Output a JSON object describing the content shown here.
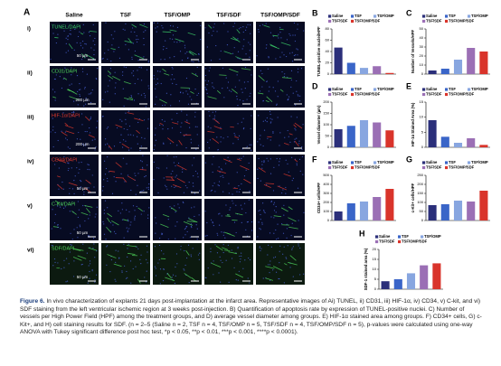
{
  "panel_a": {
    "label": "A",
    "columns": [
      "Saline",
      "TSF",
      "TSF/OMP",
      "TSF/SDF",
      "TSF/OMP/SDF"
    ],
    "rows": [
      {
        "label": "i)",
        "stain": "TUNEL/DAPI",
        "scale": "50 µm"
      },
      {
        "label": "ii)",
        "stain": "CD31/DAPI",
        "scale": "200 µm"
      },
      {
        "label": "iii)",
        "stain": "HIF-1α/DAPI",
        "scale": "200 µm"
      },
      {
        "label": "iv)",
        "stain": "CD34/DAPI",
        "scale": "50 µm"
      },
      {
        "label": "v)",
        "stain": "C-Kit/DAPI",
        "scale": "50 µm"
      },
      {
        "label": "vi)",
        "stain": "SDF/DAPI",
        "scale": "50 µm"
      }
    ]
  },
  "chart_data": [
    {
      "type": "bar",
      "panel_label": "B",
      "y_label": "TUNEL-positive nuclei/HPF",
      "ylim": [
        0,
        80
      ],
      "yticks": [
        0,
        20,
        40,
        60,
        80
      ],
      "series": [
        {
          "name": "Saline",
          "color": "#2b2f7a",
          "values": [
            47
          ]
        },
        {
          "name": "TSF",
          "color": "#3a65c8",
          "values": [
            20
          ]
        },
        {
          "name": "TSF/OMP",
          "color": "#88a6e0",
          "values": [
            11
          ]
        },
        {
          "name": "TSF/SDF",
          "color": "#9b6fb5",
          "values": [
            14
          ]
        },
        {
          "name": "TSF/OMP/SDF",
          "color": "#d9342b",
          "values": [
            2
          ]
        }
      ]
    },
    {
      "type": "bar",
      "panel_label": "C",
      "y_label": "Number of Vessels/HPF",
      "ylim": [
        0,
        50
      ],
      "yticks": [
        0,
        10,
        20,
        30,
        40,
        50
      ],
      "series": [
        {
          "name": "Saline",
          "color": "#2b2f7a",
          "values": [
            4
          ]
        },
        {
          "name": "TSF",
          "color": "#3a65c8",
          "values": [
            6
          ]
        },
        {
          "name": "TSF/OMP",
          "color": "#88a6e0",
          "values": [
            16
          ]
        },
        {
          "name": "TSF/SDF",
          "color": "#9b6fb5",
          "values": [
            29
          ]
        },
        {
          "name": "TSF/OMP/SDF",
          "color": "#d9342b",
          "values": [
            25
          ]
        }
      ]
    },
    {
      "type": "bar",
      "panel_label": "D",
      "y_label": "Vessel diameter (µm)",
      "ylim": [
        0,
        200
      ],
      "yticks": [
        0,
        50,
        100,
        150,
        200
      ],
      "series": [
        {
          "name": "Saline",
          "color": "#2b2f7a",
          "values": [
            80
          ]
        },
        {
          "name": "TSF",
          "color": "#3a65c8",
          "values": [
            95
          ]
        },
        {
          "name": "TSF/OMP",
          "color": "#88a6e0",
          "values": [
            120
          ]
        },
        {
          "name": "TSF/SDF",
          "color": "#9b6fb5",
          "values": [
            110
          ]
        },
        {
          "name": "TSF/OMP/SDF",
          "color": "#d9342b",
          "values": [
            75
          ]
        }
      ]
    },
    {
      "type": "bar",
      "panel_label": "E",
      "y_label": "HIF-1α Stained Area (%)",
      "ylim": [
        0,
        15
      ],
      "yticks": [
        0,
        5,
        10,
        15
      ],
      "series": [
        {
          "name": "Saline",
          "color": "#2b2f7a",
          "values": [
            9
          ]
        },
        {
          "name": "TSF",
          "color": "#3a65c8",
          "values": [
            3.5
          ]
        },
        {
          "name": "TSF/OMP",
          "color": "#88a6e0",
          "values": [
            1.5
          ]
        },
        {
          "name": "TSF/SDF",
          "color": "#9b6fb5",
          "values": [
            3
          ]
        },
        {
          "name": "TSF/OMP/SDF",
          "color": "#d9342b",
          "values": [
            0.8
          ]
        }
      ]
    },
    {
      "type": "bar",
      "panel_label": "F",
      "y_label": "CD34+ cells/HPF",
      "ylim": [
        0,
        500
      ],
      "yticks": [
        0,
        100,
        200,
        300,
        400,
        500
      ],
      "series": [
        {
          "name": "Saline",
          "color": "#2b2f7a",
          "values": [
            100
          ]
        },
        {
          "name": "TSF",
          "color": "#3a65c8",
          "values": [
            190
          ]
        },
        {
          "name": "TSF/OMP",
          "color": "#88a6e0",
          "values": [
            210
          ]
        },
        {
          "name": "TSF/SDF",
          "color": "#9b6fb5",
          "values": [
            260
          ]
        },
        {
          "name": "TSF/OMP/SDF",
          "color": "#d9342b",
          "values": [
            350
          ]
        }
      ]
    },
    {
      "type": "bar",
      "panel_label": "G",
      "y_label": "c-Kit+ cells/HPF",
      "ylim": [
        0,
        250
      ],
      "yticks": [
        0,
        50,
        100,
        150,
        200,
        250
      ],
      "series": [
        {
          "name": "Saline",
          "color": "#2b2f7a",
          "values": [
            85
          ]
        },
        {
          "name": "TSF",
          "color": "#3a65c8",
          "values": [
            90
          ]
        },
        {
          "name": "TSF/OMP",
          "color": "#88a6e0",
          "values": [
            110
          ]
        },
        {
          "name": "TSF/SDF",
          "color": "#9b6fb5",
          "values": [
            105
          ]
        },
        {
          "name": "TSF/OMP/SDF",
          "color": "#d9342b",
          "values": [
            165
          ]
        }
      ]
    },
    {
      "type": "bar",
      "panel_label": "H",
      "y_label": "SDF-1 stained area (%)",
      "ylim": [
        0,
        20
      ],
      "yticks": [
        0,
        5,
        10,
        15,
        20
      ],
      "series": [
        {
          "name": "Saline",
          "color": "#2b2f7a",
          "values": [
            4
          ]
        },
        {
          "name": "TSF",
          "color": "#3a65c8",
          "values": [
            5
          ]
        },
        {
          "name": "TSF/OMP",
          "color": "#88a6e0",
          "values": [
            8
          ]
        },
        {
          "name": "TSF/SDF",
          "color": "#9b6fb5",
          "values": [
            12
          ]
        },
        {
          "name": "TSF/OMP/SDF",
          "color": "#d9342b",
          "values": [
            13
          ]
        }
      ]
    }
  ],
  "caption": {
    "label": "Figure 6.",
    "text": "In vivo characterization of explants 21 days post-implantation at the infarct area. Representative images of Ai) TUNEL, ii) CD31, iii) HIF-1α, iv) CD34, v) C-kit, and vi) SDF staining from the left ventricular ischemic region at 3 weeks post-injection. B) Quantification of apoptosis rate by expression of TUNEL-positive nuclei. C) Number of vessels per High Power Field (HPF) among the treatment groups, and D) average vessel diameter among groups. E) HIF-1α stained area among groups. F) CD34+ cells, G) c-Kit+, and H) cell staining results for SDF. (n = 2–5 (Saline n = 2, TSF n = 4, TSF/OMP n = 5, TSF/SDF n = 4, TSF/OMP/SDF n = 5), p-values were calculated using one-way ANOVA with Tukey significant difference post hoc test, *p < 0.05, **p < 0.01, ***p < 0.001, ****p < 0.0001)."
  }
}
